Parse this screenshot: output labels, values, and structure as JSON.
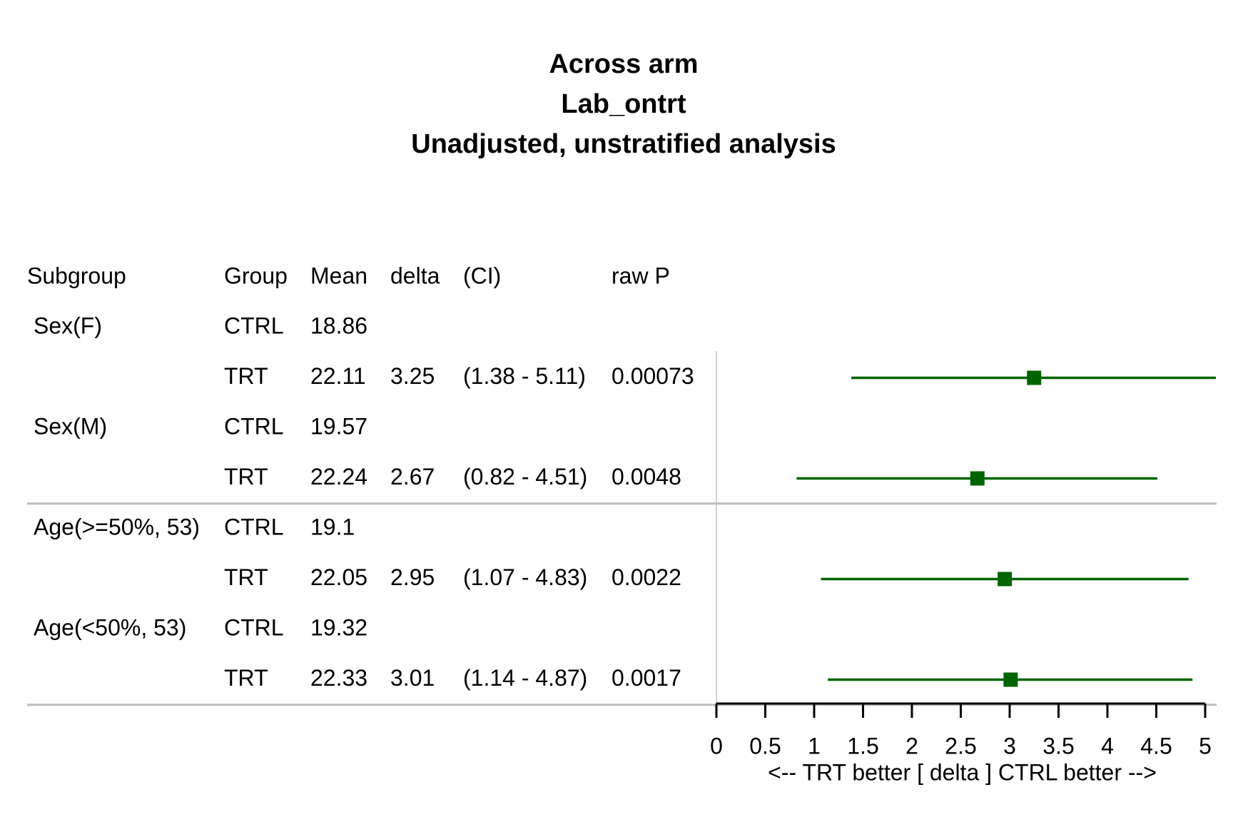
{
  "titles": [
    "Across arm",
    "Lab_ontrt",
    "Unadjusted, unstratified analysis"
  ],
  "columns": [
    "Subgroup",
    "Group",
    "Mean",
    "delta",
    "(CI)",
    "raw P"
  ],
  "chart_data": {
    "type": "forest",
    "rows": [
      {
        "subgroup": "Sex(F)",
        "group": "CTRL",
        "mean": "18.86",
        "delta": "",
        "ci": "",
        "p": ""
      },
      {
        "subgroup": "",
        "group": "TRT",
        "mean": "22.11",
        "delta": "3.25",
        "ci": "(1.38 - 5.11)",
        "p": "0.00073"
      },
      {
        "subgroup": "Sex(M)",
        "group": "CTRL",
        "mean": "19.57",
        "delta": "",
        "ci": "",
        "p": ""
      },
      {
        "subgroup": "",
        "group": "TRT",
        "mean": "22.24",
        "delta": "2.67",
        "ci": "(0.82 - 4.51)",
        "p": "0.0048"
      },
      {
        "subgroup": "Age(>=50%, 53)",
        "group": "CTRL",
        "mean": "19.1",
        "delta": "",
        "ci": "",
        "p": ""
      },
      {
        "subgroup": "",
        "group": "TRT",
        "mean": "22.05",
        "delta": "2.95",
        "ci": "(1.07 - 4.83)",
        "p": "0.0022"
      },
      {
        "subgroup": "Age(<50%, 53)",
        "group": "CTRL",
        "mean": "19.32",
        "delta": "",
        "ci": "",
        "p": ""
      },
      {
        "subgroup": "",
        "group": "TRT",
        "mean": "22.33",
        "delta": "3.01",
        "ci": "(1.14 - 4.87)",
        "p": "0.0017"
      }
    ],
    "estimates": [
      {
        "row": 1,
        "est": 3.25,
        "lo": 1.38,
        "hi": 5.11
      },
      {
        "row": 3,
        "est": 2.67,
        "lo": 0.82,
        "hi": 4.51
      },
      {
        "row": 5,
        "est": 2.95,
        "lo": 1.07,
        "hi": 4.83
      },
      {
        "row": 7,
        "est": 3.01,
        "lo": 1.14,
        "hi": 4.87
      }
    ],
    "x_ticks": [
      "0",
      "0.5",
      "1",
      "1.5",
      "2",
      "2.5",
      "3",
      "3.5",
      "4",
      "4.5",
      "5"
    ],
    "xlim": [
      0,
      5
    ],
    "xlabel": "<--  TRT better [ delta ]  CTRL better -->",
    "group_separators_after_rows": [
      3,
      7
    ],
    "marker_color": "#006400",
    "separator_color": "#bebebe",
    "refline_color": "#d3d3d3"
  }
}
